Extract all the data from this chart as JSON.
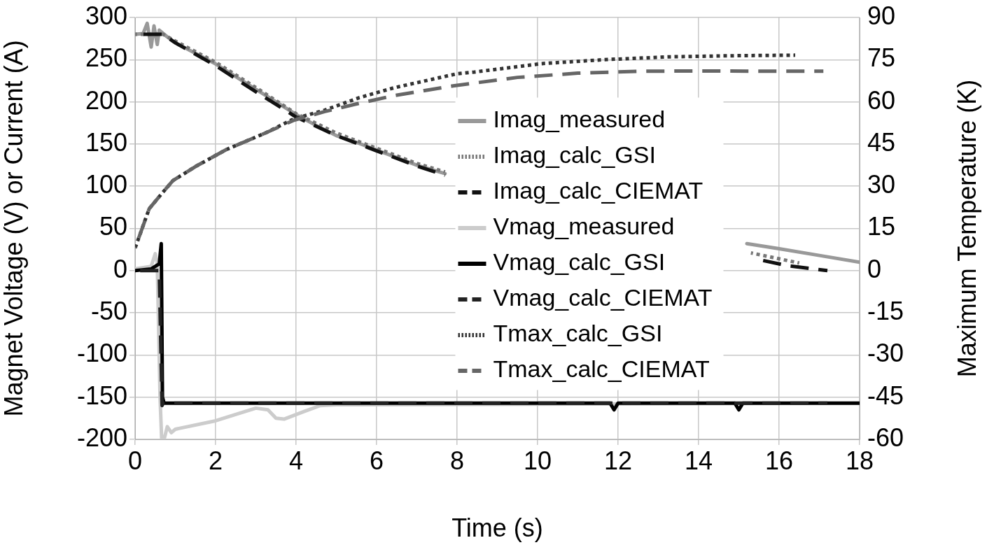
{
  "chart_data": {
    "type": "line",
    "xlabel": "Time (s)",
    "ylabel": "Magnet Voltage (V) or Current (A)",
    "y2label": "Maximum Temperature (K)",
    "xlim": [
      0,
      18
    ],
    "xticks": [
      0,
      2,
      4,
      6,
      8,
      10,
      12,
      14,
      16,
      18
    ],
    "ylim": [
      -200,
      300
    ],
    "yticks": [
      -200,
      -150,
      -100,
      -50,
      0,
      50,
      100,
      150,
      200,
      250,
      300
    ],
    "y2lim": [
      -60,
      90
    ],
    "y2ticks": [
      -60,
      -45,
      -30,
      -15,
      0,
      15,
      30,
      45,
      60,
      75,
      90
    ],
    "grid": true,
    "legend": "right",
    "marker": "none",
    "series": [
      {
        "name": "Imag_measured",
        "color": "#999999",
        "line_style": "solid",
        "x": [
          0,
          0.2,
          0.3,
          0.4,
          0.47,
          0.55,
          0.6,
          0.8,
          1,
          2,
          3,
          4,
          4.5,
          5,
          5.5,
          6,
          7,
          7.7,
          7.8,
          15.2,
          16,
          17,
          18
        ],
        "values": [
          280,
          281,
          293,
          265,
          290,
          268,
          285,
          277,
          270,
          245,
          215,
          185,
          172,
          160,
          152,
          143,
          125,
          115,
          null,
          32,
          26,
          18,
          10
        ]
      },
      {
        "name": "Imag_calc_GSI",
        "color": "#777777",
        "line_style": "dotted",
        "x": [
          0,
          0.7,
          1,
          2,
          3,
          4,
          5,
          6,
          7,
          7.7,
          7.8,
          15.3,
          16.5
        ],
        "values": [
          280,
          280,
          272,
          247,
          217,
          186,
          163,
          145,
          127,
          117,
          null,
          21,
          9
        ]
      },
      {
        "name": "Imag_calc_CIEMAT",
        "color": "#111111",
        "line_style": "dashed",
        "x": [
          0,
          0.7,
          1,
          2,
          3,
          4,
          5,
          6,
          7,
          7.7,
          7.8,
          15.4,
          16.2,
          17.2
        ],
        "values": [
          280,
          280,
          270,
          243,
          212,
          182,
          160,
          142,
          124,
          113,
          null,
          14,
          6,
          0
        ]
      },
      {
        "name": "Vmag_measured",
        "color": "#cccccc",
        "line_style": "solid",
        "x": [
          0,
          0.4,
          0.5,
          0.55,
          0.62,
          0.66,
          0.72,
          0.8,
          0.9,
          1,
          2,
          3,
          3.3,
          3.5,
          3.7,
          4.2,
          4.6,
          5,
          18
        ],
        "values": [
          2,
          5,
          20,
          10,
          -150,
          -200,
          -200,
          -185,
          -192,
          -188,
          -178,
          -163,
          -165,
          -175,
          -176,
          -167,
          -160,
          -159,
          -157
        ]
      },
      {
        "name": "Vmag_calc_GSI",
        "color": "#000000",
        "line_style": "solid",
        "x": [
          0,
          0.4,
          0.6,
          0.65,
          0.68,
          0.72,
          6,
          11.8,
          11.9,
          12,
          14.9,
          15,
          15.1,
          18
        ],
        "values": [
          0,
          2,
          8,
          32,
          -150,
          -157,
          -157,
          -157,
          -165,
          -157,
          -157,
          -165,
          -157,
          -157
        ]
      },
      {
        "name": "Vmag_calc_CIEMAT",
        "color": "#222222",
        "line_style": "dashed",
        "x": [
          0,
          0.6,
          0.67,
          0.7,
          17.2
        ],
        "values": [
          0,
          0,
          -160,
          -157,
          -157
        ]
      },
      {
        "name": "Tmax_calc_GSI",
        "color": "#333333",
        "line_style": "dotted",
        "axis": "y2",
        "x": [
          0,
          0.35,
          0.64,
          0.94,
          1.5,
          2.26,
          3.25,
          3.95,
          4.7,
          5.57,
          6.43,
          8,
          8.43,
          10.1,
          11.65,
          13.25,
          14.8,
          16.4
        ],
        "values": [
          8,
          22,
          27,
          32,
          37,
          43,
          49,
          54,
          57,
          61.5,
          65,
          70,
          70.6,
          73.6,
          75,
          76,
          76.4,
          76.6
        ]
      },
      {
        "name": "Tmax_calc_CIEMAT",
        "color": "#666666",
        "line_style": "dashed",
        "axis": "y2",
        "x": [
          0,
          0.35,
          0.64,
          0.94,
          1.5,
          2.26,
          3.25,
          3.95,
          4.7,
          5.57,
          6.43,
          7.9,
          9.5,
          11,
          12.6,
          14.2,
          15.8,
          17.1
        ],
        "values": [
          8,
          22,
          27,
          32,
          37,
          43,
          49,
          53.5,
          56.5,
          59.5,
          62.2,
          65.7,
          68.7,
          70.2,
          70.9,
          71,
          70.9,
          70.9
        ]
      }
    ]
  }
}
